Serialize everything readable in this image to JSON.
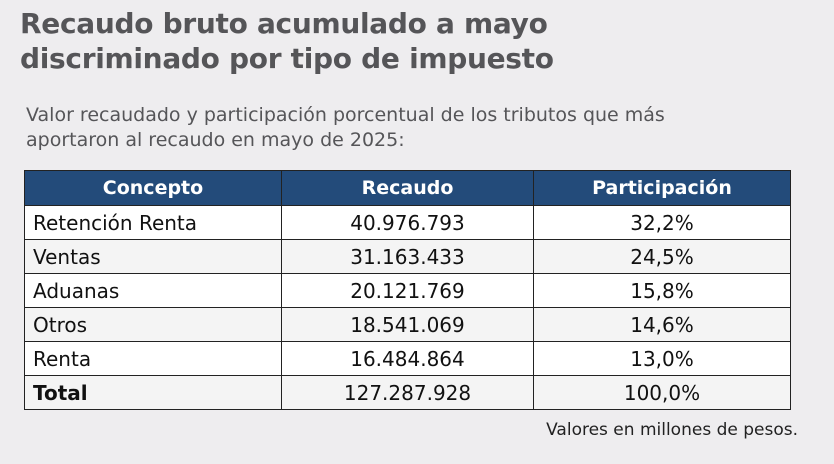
{
  "header": {
    "title": "Recaudo bruto acumulado a mayo discriminado por tipo de impuesto",
    "subtitle": "Valor recaudado y participación porcentual de los tributos que más aportaron al recaudo en mayo de 2025:"
  },
  "table": {
    "columns": [
      "Concepto",
      "Recaudo",
      "Participación"
    ],
    "rows": [
      [
        "Retención Renta",
        "40.976.793",
        "32,2%"
      ],
      [
        "Ventas",
        "31.163.433",
        "24,5%"
      ],
      [
        "Aduanas",
        "20.121.769",
        "15,8%"
      ],
      [
        "Otros",
        "18.541.069",
        "14,6%"
      ],
      [
        "Renta",
        "16.484.864",
        "13,0%"
      ],
      [
        "Total",
        "127.287.928",
        "100,0%"
      ]
    ]
  },
  "footnote": "Valores en millones de pesos."
}
